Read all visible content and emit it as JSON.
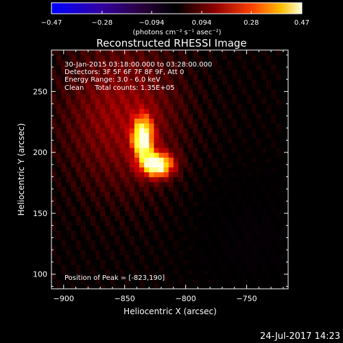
{
  "chart_data": {
    "type": "heatmap",
    "title": "Reconstructed RHESSI Image",
    "xlabel": "Heliocentric X (arcsec)",
    "ylabel": "Heliocentric Y (arcsec)",
    "xlim": [
      -910,
      -716
    ],
    "ylim": [
      88,
      284
    ],
    "x_ticks": [
      -900,
      -850,
      -800,
      -750
    ],
    "y_ticks": [
      100,
      150,
      200,
      250
    ],
    "x_tick_labels": [
      "−900",
      "−850",
      "−800",
      "−750"
    ],
    "y_tick_labels": [
      "100",
      "150",
      "200",
      "250"
    ],
    "colorbar": {
      "min": -0.47,
      "max": 0.47,
      "ticks": [
        -0.47,
        -0.28,
        -0.094,
        0.094,
        0.28,
        0.47
      ],
      "tick_labels": [
        "−0.47",
        "−0.28",
        "−0.094",
        "0.094",
        "0.28",
        "0.47"
      ],
      "unit_label": "(photons cm⁻² s⁻¹ asec⁻²)"
    },
    "annotations": [
      "30-Jan-2015 03:18:00.000 to 03:28:00.000",
      "Detectors: 3F 5F 6F 7F 8F 9F, Att 0",
      "Energy Range: 3.0 - 6.0 keV",
      "Clean     Total counts: 1.35E+05"
    ],
    "peak_label": "Position of Peak = [-823,190]",
    "peak": [
      -823,
      190
    ],
    "sources": [
      {
        "x": -835,
        "y": 212,
        "sx": 6,
        "sy": 12,
        "amp": 0.42
      },
      {
        "x": -823,
        "y": 190,
        "sx": 9,
        "sy": 7,
        "amp": 0.47
      },
      {
        "x": -852,
        "y": 232,
        "sx": 35,
        "sy": 45,
        "amp": 0.15
      }
    ],
    "pixel_size_arcsec": 4
  },
  "footer": {
    "timestamp": "24-Jul-2017 14:23"
  }
}
